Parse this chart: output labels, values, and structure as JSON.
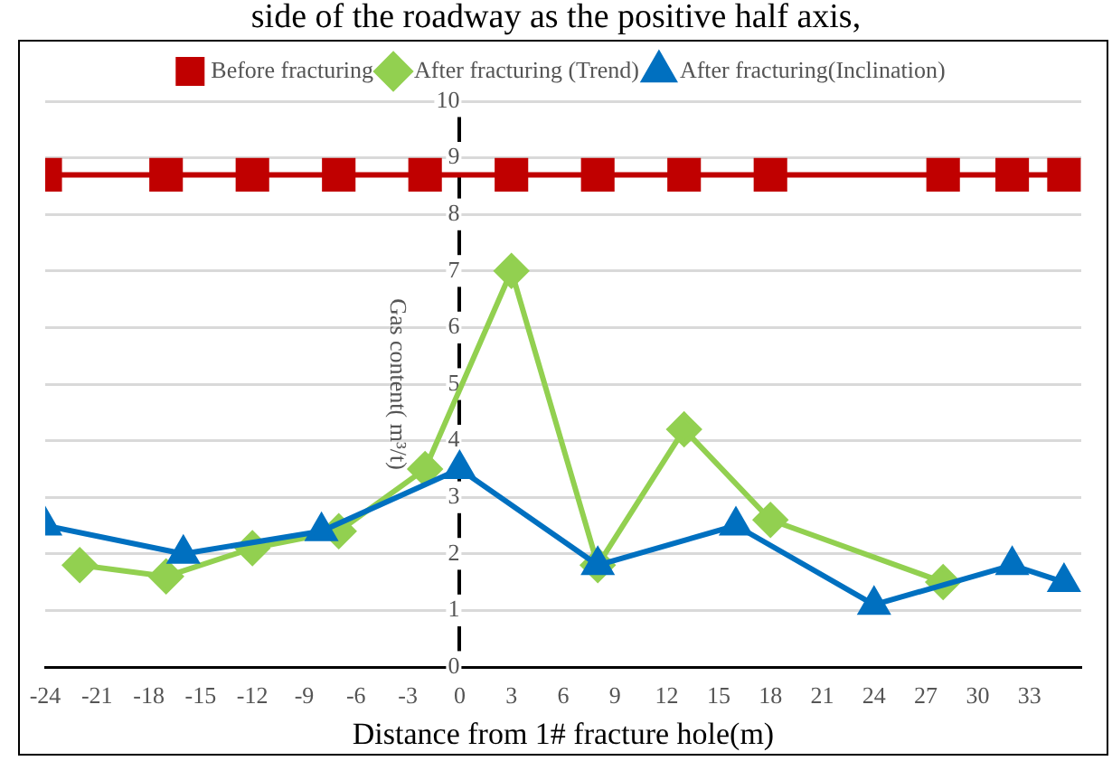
{
  "chart_data": {
    "type": "line",
    "annotations": [
      "side of the roadway as the positive half axis,"
    ],
    "xlabel": "Distance from 1# fracture hole(m)",
    "ylabel": "Gas content( m³/t)",
    "xlim": [
      -24,
      36
    ],
    "xticks": [
      -24,
      -21,
      -18,
      -15,
      -12,
      -9,
      -6,
      -3,
      0,
      3,
      6,
      9,
      12,
      15,
      18,
      21,
      24,
      27,
      30,
      33
    ],
    "ylim": [
      0,
      10
    ],
    "yticks": [
      0,
      1,
      2,
      3,
      4,
      5,
      6,
      7,
      8,
      9,
      10
    ],
    "grid": "y",
    "legend": "top",
    "series": [
      {
        "name": "Before fracturing",
        "color": "#c00000",
        "marker": "square",
        "x": [
          -24,
          -17,
          -12,
          -7,
          -2,
          3,
          8,
          13,
          18,
          28,
          32,
          35
        ],
        "values": [
          8.7,
          8.7,
          8.7,
          8.7,
          8.7,
          8.7,
          8.7,
          8.7,
          8.7,
          8.7,
          8.7,
          8.7
        ]
      },
      {
        "name": "After fracturing (Trend)",
        "color": "#92d050",
        "marker": "diamond",
        "x": [
          -22,
          -17,
          -12,
          -7,
          -2,
          3,
          8,
          13,
          18,
          28
        ],
        "values": [
          1.8,
          1.6,
          2.1,
          2.4,
          3.5,
          7.0,
          1.8,
          4.2,
          2.6,
          1.5
        ]
      },
      {
        "name": "After fracturing(Inclination)",
        "color": "#0070c0",
        "marker": "triangle",
        "x": [
          -24,
          -16,
          -8,
          0,
          8,
          16,
          24,
          32,
          35
        ],
        "values": [
          2.5,
          2.0,
          2.4,
          3.5,
          1.8,
          2.5,
          1.1,
          1.8,
          1.5
        ]
      }
    ]
  }
}
